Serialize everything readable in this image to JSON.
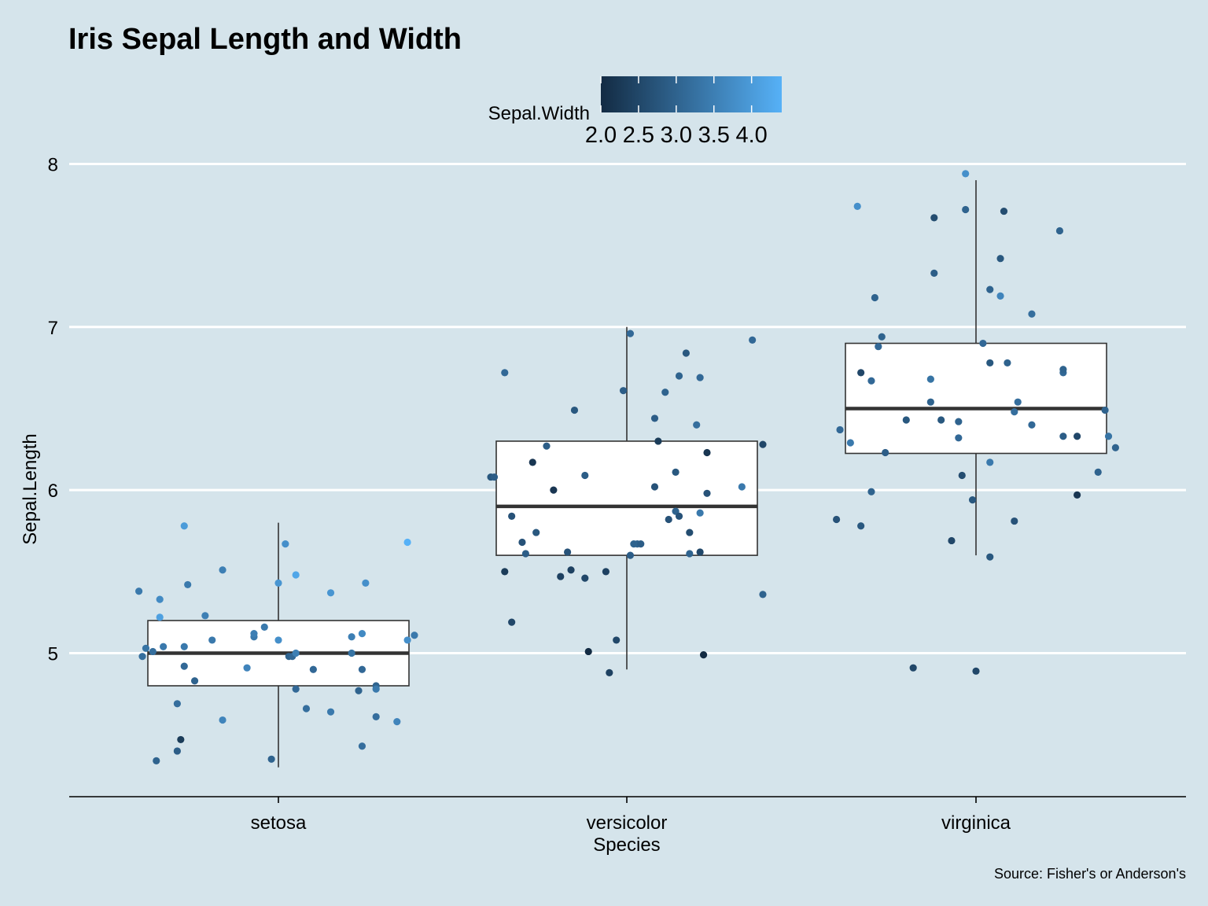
{
  "chart_data": {
    "type": "boxplot",
    "title": "Iris Sepal Length and Width",
    "xlabel": "Species",
    "ylabel": "Sepal.Length",
    "caption": "Source: Fisher's or Anderson's",
    "categories": [
      "setosa",
      "versicolor",
      "virginica"
    ],
    "ylim": [
      4.12,
      8.06
    ],
    "yticks": [
      5,
      6,
      7,
      8
    ],
    "grid": "horizontal",
    "legend": {
      "title": "Sepal.Width",
      "placement": "top",
      "range": [
        2.0,
        4.4
      ],
      "ticks": [
        "2.0",
        "2.5",
        "3.0",
        "3.5",
        "4.0"
      ],
      "tick_values": [
        2.0,
        2.5,
        3.0,
        3.5,
        4.0
      ],
      "color_low": "#132b43",
      "color_high": "#56b1f7"
    },
    "boxes": [
      {
        "category": "setosa",
        "whisker_low": 4.3,
        "q1": 4.8,
        "median": 5.0,
        "q3": 5.2,
        "whisker_high": 5.8
      },
      {
        "category": "versicolor",
        "whisker_low": 4.9,
        "q1": 5.6,
        "median": 5.9,
        "q3": 6.3,
        "whisker_high": 7.0
      },
      {
        "category": "virginica",
        "whisker_low": 5.6,
        "q1": 6.225,
        "median": 6.5,
        "q3": 6.9,
        "whisker_high": 7.9
      }
    ],
    "points": [
      {
        "category": "setosa",
        "jitter": -0.4,
        "y": 5.38,
        "w": 3.4
      },
      {
        "category": "setosa",
        "jitter": -0.38,
        "y": 5.03,
        "w": 3.3
      },
      {
        "category": "setosa",
        "jitter": -0.39,
        "y": 4.98,
        "w": 3.2
      },
      {
        "category": "setosa",
        "jitter": -0.36,
        "y": 5.01,
        "w": 3.2
      },
      {
        "category": "setosa",
        "jitter": -0.33,
        "y": 5.04,
        "w": 3.4
      },
      {
        "category": "setosa",
        "jitter": -0.34,
        "y": 5.33,
        "w": 3.7
      },
      {
        "category": "setosa",
        "jitter": -0.34,
        "y": 5.22,
        "w": 4.1
      },
      {
        "category": "setosa",
        "jitter": -0.27,
        "y": 5.78,
        "w": 4.0
      },
      {
        "category": "setosa",
        "jitter": -0.26,
        "y": 5.42,
        "w": 3.4
      },
      {
        "category": "setosa",
        "jitter": -0.27,
        "y": 5.04,
        "w": 3.4
      },
      {
        "category": "setosa",
        "jitter": -0.27,
        "y": 4.92,
        "w": 3.1
      },
      {
        "category": "setosa",
        "jitter": -0.24,
        "y": 4.83,
        "w": 3.0
      },
      {
        "category": "setosa",
        "jitter": -0.29,
        "y": 4.69,
        "w": 3.2
      },
      {
        "category": "setosa",
        "jitter": -0.28,
        "y": 4.47,
        "w": 2.3
      },
      {
        "category": "setosa",
        "jitter": -0.29,
        "y": 4.4,
        "w": 2.9
      },
      {
        "category": "setosa",
        "jitter": -0.35,
        "y": 4.34,
        "w": 3.0
      },
      {
        "category": "setosa",
        "jitter": -0.21,
        "y": 5.23,
        "w": 3.5
      },
      {
        "category": "setosa",
        "jitter": -0.19,
        "y": 5.08,
        "w": 3.4
      },
      {
        "category": "setosa",
        "jitter": -0.16,
        "y": 5.51,
        "w": 3.5
      },
      {
        "category": "setosa",
        "jitter": -0.16,
        "y": 4.59,
        "w": 3.6
      },
      {
        "category": "setosa",
        "jitter": -0.09,
        "y": 4.91,
        "w": 3.6
      },
      {
        "category": "setosa",
        "jitter": -0.07,
        "y": 5.1,
        "w": 3.4
      },
      {
        "category": "setosa",
        "jitter": -0.07,
        "y": 5.12,
        "w": 3.5
      },
      {
        "category": "setosa",
        "jitter": -0.04,
        "y": 5.16,
        "w": 3.4
      },
      {
        "category": "setosa",
        "jitter": -0.02,
        "y": 4.35,
        "w": 3.0
      },
      {
        "category": "setosa",
        "jitter": 0.0,
        "y": 5.08,
        "w": 3.8
      },
      {
        "category": "setosa",
        "jitter": 0.0,
        "y": 5.43,
        "w": 3.9
      },
      {
        "category": "setosa",
        "jitter": 0.02,
        "y": 5.67,
        "w": 3.8
      },
      {
        "category": "setosa",
        "jitter": 0.03,
        "y": 4.98,
        "w": 3.0
      },
      {
        "category": "setosa",
        "jitter": 0.04,
        "y": 4.98,
        "w": 3.1
      },
      {
        "category": "setosa",
        "jitter": 0.05,
        "y": 5.48,
        "w": 4.2
      },
      {
        "category": "setosa",
        "jitter": 0.05,
        "y": 5.0,
        "w": 3.5
      },
      {
        "category": "setosa",
        "jitter": 0.05,
        "y": 4.78,
        "w": 3.1
      },
      {
        "category": "setosa",
        "jitter": 0.08,
        "y": 4.66,
        "w": 3.2
      },
      {
        "category": "setosa",
        "jitter": 0.1,
        "y": 4.9,
        "w": 3.1
      },
      {
        "category": "setosa",
        "jitter": 0.15,
        "y": 4.64,
        "w": 3.4
      },
      {
        "category": "setosa",
        "jitter": 0.15,
        "y": 5.37,
        "w": 3.9
      },
      {
        "category": "setosa",
        "jitter": 0.21,
        "y": 5.1,
        "w": 3.5
      },
      {
        "category": "setosa",
        "jitter": 0.21,
        "y": 5.0,
        "w": 3.3
      },
      {
        "category": "setosa",
        "jitter": 0.24,
        "y": 5.12,
        "w": 3.7
      },
      {
        "category": "setosa",
        "jitter": 0.24,
        "y": 4.9,
        "w": 3.1
      },
      {
        "category": "setosa",
        "jitter": 0.24,
        "y": 4.43,
        "w": 3.2
      },
      {
        "category": "setosa",
        "jitter": 0.25,
        "y": 5.43,
        "w": 3.8
      },
      {
        "category": "setosa",
        "jitter": 0.23,
        "y": 4.77,
        "w": 3.0
      },
      {
        "category": "setosa",
        "jitter": 0.28,
        "y": 4.8,
        "w": 3.0
      },
      {
        "category": "setosa",
        "jitter": 0.28,
        "y": 4.78,
        "w": 3.4
      },
      {
        "category": "setosa",
        "jitter": 0.28,
        "y": 4.61,
        "w": 3.2
      },
      {
        "category": "setosa",
        "jitter": 0.34,
        "y": 4.58,
        "w": 3.6
      },
      {
        "category": "setosa",
        "jitter": 0.37,
        "y": 5.68,
        "w": 4.4
      },
      {
        "category": "setosa",
        "jitter": 0.37,
        "y": 5.08,
        "w": 3.8
      },
      {
        "category": "setosa",
        "jitter": 0.39,
        "y": 5.11,
        "w": 3.4
      },
      {
        "category": "versicolor",
        "jitter": -0.39,
        "y": 6.08,
        "w": 2.8
      },
      {
        "category": "versicolor",
        "jitter": -0.38,
        "y": 6.08,
        "w": 2.9
      },
      {
        "category": "versicolor",
        "jitter": -0.35,
        "y": 6.72,
        "w": 3.1
      },
      {
        "category": "versicolor",
        "jitter": -0.35,
        "y": 5.5,
        "w": 2.3
      },
      {
        "category": "versicolor",
        "jitter": -0.33,
        "y": 5.84,
        "w": 2.7
      },
      {
        "category": "versicolor",
        "jitter": -0.33,
        "y": 5.19,
        "w": 2.5
      },
      {
        "category": "versicolor",
        "jitter": -0.3,
        "y": 5.68,
        "w": 2.7
      },
      {
        "category": "versicolor",
        "jitter": -0.29,
        "y": 5.61,
        "w": 2.9
      },
      {
        "category": "versicolor",
        "jitter": -0.27,
        "y": 6.17,
        "w": 2.2
      },
      {
        "category": "versicolor",
        "jitter": -0.26,
        "y": 5.74,
        "w": 2.8
      },
      {
        "category": "versicolor",
        "jitter": -0.23,
        "y": 6.27,
        "w": 2.9
      },
      {
        "category": "versicolor",
        "jitter": -0.21,
        "y": 6.0,
        "w": 2.2
      },
      {
        "category": "versicolor",
        "jitter": -0.19,
        "y": 5.47,
        "w": 2.4
      },
      {
        "category": "versicolor",
        "jitter": -0.17,
        "y": 5.62,
        "w": 2.7
      },
      {
        "category": "versicolor",
        "jitter": -0.16,
        "y": 5.51,
        "w": 2.4
      },
      {
        "category": "versicolor",
        "jitter": -0.15,
        "y": 6.49,
        "w": 2.8
      },
      {
        "category": "versicolor",
        "jitter": -0.12,
        "y": 6.09,
        "w": 2.9
      },
      {
        "category": "versicolor",
        "jitter": -0.12,
        "y": 5.46,
        "w": 2.5
      },
      {
        "category": "versicolor",
        "jitter": -0.11,
        "y": 5.01,
        "w": 2.0
      },
      {
        "category": "versicolor",
        "jitter": -0.06,
        "y": 5.5,
        "w": 2.4
      },
      {
        "category": "versicolor",
        "jitter": -0.05,
        "y": 4.88,
        "w": 2.4
      },
      {
        "category": "versicolor",
        "jitter": -0.03,
        "y": 5.08,
        "w": 2.5
      },
      {
        "category": "versicolor",
        "jitter": -0.01,
        "y": 6.61,
        "w": 2.9
      },
      {
        "category": "versicolor",
        "jitter": 0.01,
        "y": 6.96,
        "w": 3.1
      },
      {
        "category": "versicolor",
        "jitter": 0.01,
        "y": 5.6,
        "w": 2.9
      },
      {
        "category": "versicolor",
        "jitter": 0.02,
        "y": 5.67,
        "w": 3.0
      },
      {
        "category": "versicolor",
        "jitter": 0.03,
        "y": 5.67,
        "w": 3.0
      },
      {
        "category": "versicolor",
        "jitter": 0.04,
        "y": 5.67,
        "w": 2.9
      },
      {
        "category": "versicolor",
        "jitter": 0.08,
        "y": 6.44,
        "w": 2.9
      },
      {
        "category": "versicolor",
        "jitter": 0.08,
        "y": 6.02,
        "w": 2.7
      },
      {
        "category": "versicolor",
        "jitter": 0.09,
        "y": 6.3,
        "w": 2.3
      },
      {
        "category": "versicolor",
        "jitter": 0.11,
        "y": 6.6,
        "w": 3.0
      },
      {
        "category": "versicolor",
        "jitter": 0.12,
        "y": 5.82,
        "w": 2.7
      },
      {
        "category": "versicolor",
        "jitter": 0.14,
        "y": 6.11,
        "w": 2.8
      },
      {
        "category": "versicolor",
        "jitter": 0.14,
        "y": 5.87,
        "w": 3.0
      },
      {
        "category": "versicolor",
        "jitter": 0.15,
        "y": 5.84,
        "w": 2.7
      },
      {
        "category": "versicolor",
        "jitter": 0.15,
        "y": 6.7,
        "w": 3.0
      },
      {
        "category": "versicolor",
        "jitter": 0.17,
        "y": 6.84,
        "w": 2.8
      },
      {
        "category": "versicolor",
        "jitter": 0.18,
        "y": 5.74,
        "w": 2.6
      },
      {
        "category": "versicolor",
        "jitter": 0.18,
        "y": 5.61,
        "w": 3.0
      },
      {
        "category": "versicolor",
        "jitter": 0.2,
        "y": 6.4,
        "w": 3.2
      },
      {
        "category": "versicolor",
        "jitter": 0.21,
        "y": 5.86,
        "w": 3.4
      },
      {
        "category": "versicolor",
        "jitter": 0.21,
        "y": 5.62,
        "w": 2.5
      },
      {
        "category": "versicolor",
        "jitter": 0.21,
        "y": 6.69,
        "w": 3.1
      },
      {
        "category": "versicolor",
        "jitter": 0.22,
        "y": 4.99,
        "w": 2.0
      },
      {
        "category": "versicolor",
        "jitter": 0.23,
        "y": 5.98,
        "w": 2.7
      },
      {
        "category": "versicolor",
        "jitter": 0.23,
        "y": 6.23,
        "w": 2.2
      },
      {
        "category": "versicolor",
        "jitter": 0.33,
        "y": 6.02,
        "w": 3.4
      },
      {
        "category": "versicolor",
        "jitter": 0.36,
        "y": 6.92,
        "w": 3.1
      },
      {
        "category": "versicolor",
        "jitter": 0.39,
        "y": 5.36,
        "w": 3.0
      },
      {
        "category": "versicolor",
        "jitter": 0.39,
        "y": 6.28,
        "w": 2.5
      },
      {
        "category": "virginica",
        "jitter": -0.4,
        "y": 5.82,
        "w": 2.7
      },
      {
        "category": "virginica",
        "jitter": -0.39,
        "y": 6.37,
        "w": 3.1
      },
      {
        "category": "virginica",
        "jitter": -0.36,
        "y": 6.29,
        "w": 3.4
      },
      {
        "category": "virginica",
        "jitter": -0.34,
        "y": 7.74,
        "w": 3.8
      },
      {
        "category": "virginica",
        "jitter": -0.33,
        "y": 6.72,
        "w": 2.5
      },
      {
        "category": "virginica",
        "jitter": -0.33,
        "y": 5.78,
        "w": 2.8
      },
      {
        "category": "virginica",
        "jitter": -0.3,
        "y": 5.99,
        "w": 3.0
      },
      {
        "category": "virginica",
        "jitter": -0.3,
        "y": 6.67,
        "w": 3.1
      },
      {
        "category": "virginica",
        "jitter": -0.29,
        "y": 7.18,
        "w": 3.0
      },
      {
        "category": "virginica",
        "jitter": -0.28,
        "y": 6.88,
        "w": 3.1
      },
      {
        "category": "virginica",
        "jitter": -0.27,
        "y": 6.94,
        "w": 3.0
      },
      {
        "category": "virginica",
        "jitter": -0.26,
        "y": 6.23,
        "w": 2.9
      },
      {
        "category": "virginica",
        "jitter": -0.2,
        "y": 6.43,
        "w": 2.8
      },
      {
        "category": "virginica",
        "jitter": -0.18,
        "y": 4.91,
        "w": 2.5
      },
      {
        "category": "virginica",
        "jitter": -0.13,
        "y": 6.68,
        "w": 3.3
      },
      {
        "category": "virginica",
        "jitter": -0.13,
        "y": 6.54,
        "w": 3.0
      },
      {
        "category": "virginica",
        "jitter": -0.1,
        "y": 6.43,
        "w": 2.8
      },
      {
        "category": "virginica",
        "jitter": -0.12,
        "y": 7.33,
        "w": 2.9
      },
      {
        "category": "virginica",
        "jitter": -0.12,
        "y": 7.67,
        "w": 2.6
      },
      {
        "category": "virginica",
        "jitter": -0.07,
        "y": 5.69,
        "w": 2.5
      },
      {
        "category": "virginica",
        "jitter": -0.05,
        "y": 6.42,
        "w": 3.0
      },
      {
        "category": "virginica",
        "jitter": -0.05,
        "y": 6.32,
        "w": 3.1
      },
      {
        "category": "virginica",
        "jitter": -0.04,
        "y": 6.09,
        "w": 2.6
      },
      {
        "category": "virginica",
        "jitter": -0.03,
        "y": 7.94,
        "w": 3.8
      },
      {
        "category": "virginica",
        "jitter": -0.03,
        "y": 7.72,
        "w": 3.0
      },
      {
        "category": "virginica",
        "jitter": -0.01,
        "y": 5.94,
        "w": 2.8
      },
      {
        "category": "virginica",
        "jitter": 0.0,
        "y": 4.89,
        "w": 2.5
      },
      {
        "category": "virginica",
        "jitter": 0.02,
        "y": 6.9,
        "w": 3.1
      },
      {
        "category": "virginica",
        "jitter": 0.04,
        "y": 7.23,
        "w": 3.0
      },
      {
        "category": "virginica",
        "jitter": 0.04,
        "y": 5.59,
        "w": 2.8
      },
      {
        "category": "virginica",
        "jitter": 0.04,
        "y": 6.17,
        "w": 3.4
      },
      {
        "category": "virginica",
        "jitter": 0.04,
        "y": 6.78,
        "w": 2.8
      },
      {
        "category": "virginica",
        "jitter": 0.07,
        "y": 7.42,
        "w": 2.8
      },
      {
        "category": "virginica",
        "jitter": 0.07,
        "y": 7.19,
        "w": 3.6
      },
      {
        "category": "virginica",
        "jitter": 0.08,
        "y": 7.71,
        "w": 2.6
      },
      {
        "category": "virginica",
        "jitter": 0.09,
        "y": 6.78,
        "w": 3.0
      },
      {
        "category": "virginica",
        "jitter": 0.11,
        "y": 5.81,
        "w": 2.7
      },
      {
        "category": "virginica",
        "jitter": 0.11,
        "y": 6.48,
        "w": 3.2
      },
      {
        "category": "virginica",
        "jitter": 0.12,
        "y": 6.54,
        "w": 3.2
      },
      {
        "category": "virginica",
        "jitter": 0.16,
        "y": 7.08,
        "w": 3.2
      },
      {
        "category": "virginica",
        "jitter": 0.16,
        "y": 6.4,
        "w": 3.1
      },
      {
        "category": "virginica",
        "jitter": 0.25,
        "y": 6.72,
        "w": 3.1
      },
      {
        "category": "virginica",
        "jitter": 0.25,
        "y": 6.74,
        "w": 3.0
      },
      {
        "category": "virginica",
        "jitter": 0.25,
        "y": 6.33,
        "w": 2.9
      },
      {
        "category": "virginica",
        "jitter": 0.24,
        "y": 7.59,
        "w": 3.0
      },
      {
        "category": "virginica",
        "jitter": 0.29,
        "y": 6.33,
        "w": 2.5
      },
      {
        "category": "virginica",
        "jitter": 0.29,
        "y": 5.97,
        "w": 2.2
      },
      {
        "category": "virginica",
        "jitter": 0.35,
        "y": 6.11,
        "w": 3.0
      },
      {
        "category": "virginica",
        "jitter": 0.37,
        "y": 6.49,
        "w": 3.0
      },
      {
        "category": "virginica",
        "jitter": 0.38,
        "y": 6.33,
        "w": 3.3
      },
      {
        "category": "virginica",
        "jitter": 0.4,
        "y": 6.26,
        "w": 3.0
      }
    ]
  }
}
